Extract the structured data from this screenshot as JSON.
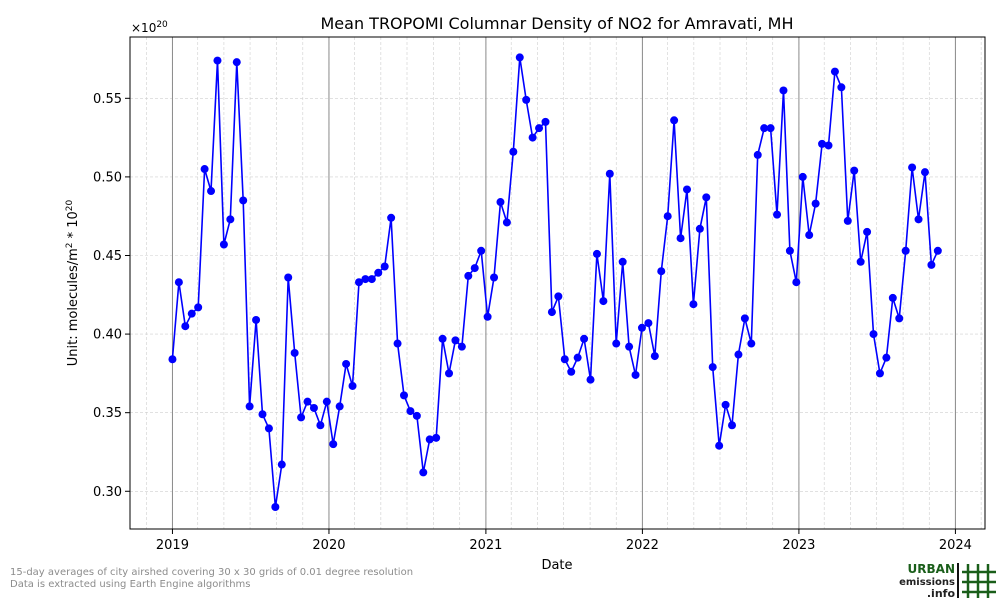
{
  "chart_data": {
    "type": "line",
    "title": "Mean TROPOMI Columnar Density of NO2 for Amravati, MH",
    "xlabel": "Date",
    "ylabel": "Unit: molecules/m^2 * 10^20",
    "multiplier_label": "×10^20",
    "xlim": [
      "2018-09-24",
      "2024-03-10"
    ],
    "ylim": [
      0.276,
      0.589
    ],
    "x_ticks": [
      "2019",
      "2020",
      "2021",
      "2022",
      "2023",
      "2024"
    ],
    "y_ticks": [
      0.3,
      0.35,
      0.4,
      0.45,
      0.5,
      0.55
    ],
    "grid": true,
    "colors": {
      "line": "#0000ff",
      "marker": "#0000ff",
      "year_line": "#8a8a8a",
      "grid": "#cfcfcf"
    },
    "series": [
      {
        "points": [
          [
            "2019-01-01",
            0.384
          ],
          [
            "2019-01-16",
            0.433
          ],
          [
            "2019-01-31",
            0.405
          ],
          [
            "2019-02-15",
            0.413
          ],
          [
            "2019-03-02",
            0.417
          ],
          [
            "2019-03-17",
            0.505
          ],
          [
            "2019-04-01",
            0.491
          ],
          [
            "2019-04-16",
            0.574
          ],
          [
            "2019-05-01",
            0.457
          ],
          [
            "2019-05-16",
            0.473
          ],
          [
            "2019-05-31",
            0.573
          ],
          [
            "2019-06-15",
            0.485
          ],
          [
            "2019-06-30",
            0.354
          ],
          [
            "2019-07-15",
            0.409
          ],
          [
            "2019-07-30",
            0.349
          ],
          [
            "2019-08-14",
            0.34
          ],
          [
            "2019-08-29",
            0.29
          ],
          [
            "2019-09-13",
            0.317
          ],
          [
            "2019-09-28",
            0.436
          ],
          [
            "2019-10-13",
            0.388
          ],
          [
            "2019-10-28",
            0.347
          ],
          [
            "2019-11-12",
            0.357
          ],
          [
            "2019-11-27",
            0.353
          ],
          [
            "2019-12-12",
            0.342
          ],
          [
            "2019-12-27",
            0.357
          ],
          [
            "2020-01-11",
            0.33
          ],
          [
            "2020-01-26",
            0.354
          ],
          [
            "2020-02-10",
            0.381
          ],
          [
            "2020-02-25",
            0.367
          ],
          [
            "2020-03-11",
            0.433
          ],
          [
            "2020-03-26",
            0.435
          ],
          [
            "2020-04-10",
            0.435
          ],
          [
            "2020-04-25",
            0.439
          ],
          [
            "2020-05-10",
            0.443
          ],
          [
            "2020-05-25",
            0.474
          ],
          [
            "2020-06-09",
            0.394
          ],
          [
            "2020-06-24",
            0.361
          ],
          [
            "2020-07-09",
            0.351
          ],
          [
            "2020-07-24",
            0.348
          ],
          [
            "2020-08-08",
            0.312
          ],
          [
            "2020-08-23",
            0.333
          ],
          [
            "2020-09-07",
            0.334
          ],
          [
            "2020-09-22",
            0.397
          ],
          [
            "2020-10-07",
            0.375
          ],
          [
            "2020-10-22",
            0.396
          ],
          [
            "2020-11-06",
            0.392
          ],
          [
            "2020-11-21",
            0.437
          ],
          [
            "2020-12-06",
            0.442
          ],
          [
            "2020-12-21",
            0.453
          ],
          [
            "2021-01-05",
            0.411
          ],
          [
            "2021-01-20",
            0.436
          ],
          [
            "2021-02-04",
            0.484
          ],
          [
            "2021-02-19",
            0.471
          ],
          [
            "2021-03-06",
            0.516
          ],
          [
            "2021-03-21",
            0.576
          ],
          [
            "2021-04-05",
            0.549
          ],
          [
            "2021-04-20",
            0.525
          ],
          [
            "2021-05-05",
            0.531
          ],
          [
            "2021-05-20",
            0.535
          ],
          [
            "2021-06-04",
            0.414
          ],
          [
            "2021-06-19",
            0.424
          ],
          [
            "2021-07-04",
            0.384
          ],
          [
            "2021-07-19",
            0.376
          ],
          [
            "2021-08-03",
            0.385
          ],
          [
            "2021-08-18",
            0.397
          ],
          [
            "2021-09-02",
            0.371
          ],
          [
            "2021-09-17",
            0.451
          ],
          [
            "2021-10-02",
            0.421
          ],
          [
            "2021-10-17",
            0.502
          ],
          [
            "2021-11-01",
            0.394
          ],
          [
            "2021-11-16",
            0.446
          ],
          [
            "2021-12-01",
            0.392
          ],
          [
            "2021-12-16",
            0.374
          ],
          [
            "2021-12-31",
            0.404
          ],
          [
            "2022-01-15",
            0.407
          ],
          [
            "2022-01-30",
            0.386
          ],
          [
            "2022-02-14",
            0.44
          ],
          [
            "2022-03-01",
            0.475
          ],
          [
            "2022-03-16",
            0.536
          ],
          [
            "2022-03-31",
            0.461
          ],
          [
            "2022-04-15",
            0.492
          ],
          [
            "2022-04-30",
            0.419
          ],
          [
            "2022-05-15",
            0.467
          ],
          [
            "2022-05-30",
            0.487
          ],
          [
            "2022-06-14",
            0.379
          ],
          [
            "2022-06-29",
            0.329
          ],
          [
            "2022-07-14",
            0.355
          ],
          [
            "2022-07-29",
            0.342
          ],
          [
            "2022-08-13",
            0.387
          ],
          [
            "2022-08-28",
            0.41
          ],
          [
            "2022-09-12",
            0.394
          ],
          [
            "2022-09-27",
            0.514
          ],
          [
            "2022-10-12",
            0.531
          ],
          [
            "2022-10-27",
            0.531
          ],
          [
            "2022-11-11",
            0.476
          ],
          [
            "2022-11-26",
            0.555
          ],
          [
            "2022-12-11",
            0.453
          ],
          [
            "2022-12-26",
            0.433
          ],
          [
            "2023-01-10",
            0.5
          ],
          [
            "2023-01-25",
            0.463
          ],
          [
            "2023-02-09",
            0.483
          ],
          [
            "2023-02-24",
            0.521
          ],
          [
            "2023-03-11",
            0.52
          ],
          [
            "2023-03-26",
            0.567
          ],
          [
            "2023-04-10",
            0.557
          ],
          [
            "2023-04-25",
            0.472
          ],
          [
            "2023-05-10",
            0.504
          ],
          [
            "2023-05-25",
            0.446
          ],
          [
            "2023-06-09",
            0.465
          ],
          [
            "2023-06-24",
            0.4
          ],
          [
            "2023-07-09",
            0.375
          ],
          [
            "2023-07-24",
            0.385
          ],
          [
            "2023-08-08",
            0.423
          ],
          [
            "2023-08-23",
            0.41
          ],
          [
            "2023-09-07",
            0.453
          ],
          [
            "2023-09-22",
            0.506
          ],
          [
            "2023-10-07",
            0.473
          ],
          [
            "2023-10-22",
            0.503
          ],
          [
            "2023-11-06",
            0.444
          ],
          [
            "2023-11-21",
            0.453
          ]
        ]
      }
    ]
  },
  "footnotes": [
    "15-day averages of city airshed covering 30 x 30 grids of 0.01 degree resolution",
    "Data is extracted using Earth Engine algorithms"
  ],
  "logo": {
    "line1": "URBAN",
    "line2": "emissions",
    "line3": ".info",
    "color": "#1a5e1a"
  }
}
